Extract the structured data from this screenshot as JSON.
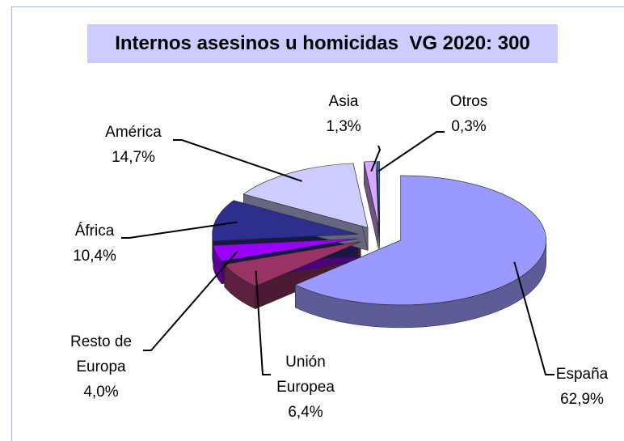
{
  "chart_data": {
    "type": "pie",
    "title": "Internos asesinos u homicidas  VG 2020: 300",
    "categories": [
      "España",
      "Unión Europea",
      "Resto de Europa",
      "África",
      "América",
      "Asia",
      "Otros"
    ],
    "values": [
      62.9,
      6.4,
      4.0,
      10.4,
      14.7,
      1.3,
      0.3
    ],
    "value_labels": [
      "62,9%",
      "6,4%",
      "4,0%",
      "10,4%",
      "14,7%",
      "1,3%",
      "0,3%"
    ],
    "colors": [
      "#9999ff",
      "#993366",
      "#9900ff",
      "#2e2e8f",
      "#ccccff",
      "#d7a8ff",
      "#3366cc"
    ]
  }
}
